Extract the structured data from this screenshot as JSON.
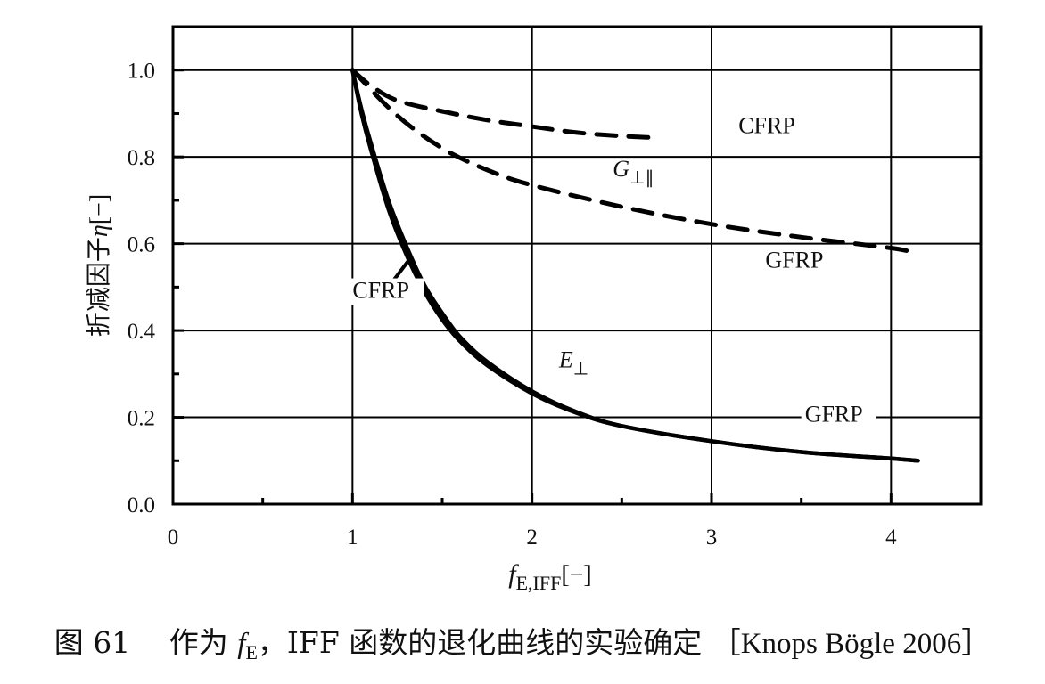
{
  "chart_data": {
    "type": "line",
    "xlim": [
      0,
      4.5
    ],
    "ylim": [
      0,
      1.1
    ],
    "xticks": [
      "0",
      "1",
      "2",
      "3",
      "4"
    ],
    "yticks": [
      "0.0",
      "0.2",
      "0.4",
      "0.6",
      "0.8",
      "1.0"
    ],
    "xlabel": {
      "var": "f",
      "sub": "E,IFF",
      "unit": "[−]"
    },
    "ylabel": {
      "text": "折减因子",
      "var": "η",
      "unit": "[−]"
    },
    "grid": true,
    "series": [
      {
        "name": "CFRP G⊥∥",
        "style": "dashed",
        "color": "#000000",
        "x": [
          1.0,
          1.1,
          1.25,
          1.5,
          1.75,
          2.0,
          2.25,
          2.5,
          2.65
        ],
        "y": [
          1.0,
          0.965,
          0.93,
          0.905,
          0.885,
          0.87,
          0.856,
          0.848,
          0.845
        ]
      },
      {
        "name": "GFRP G⊥∥",
        "style": "dashed",
        "color": "#000000",
        "x": [
          1.0,
          1.25,
          1.5,
          1.75,
          2.0,
          2.5,
          3.0,
          3.5,
          4.0,
          4.12
        ],
        "y": [
          1.0,
          0.895,
          0.82,
          0.77,
          0.735,
          0.685,
          0.645,
          0.615,
          0.59,
          0.58
        ]
      },
      {
        "name": "CFRP E⊥",
        "style": "solid",
        "color": "#000000",
        "x": [
          1.0,
          1.05,
          1.1,
          1.2,
          1.3,
          1.4,
          1.5,
          1.6,
          1.75,
          2.0,
          2.25,
          2.5,
          3.0,
          3.5,
          4.0,
          4.15
        ],
        "y": [
          1.0,
          0.9,
          0.82,
          0.68,
          0.575,
          0.49,
          0.425,
          0.375,
          0.32,
          0.255,
          0.21,
          0.18,
          0.145,
          0.12,
          0.105,
          0.1
        ]
      },
      {
        "name": "GFRP E⊥",
        "style": "solid",
        "color": "#000000",
        "x": [
          1.0,
          1.05,
          1.1,
          1.2,
          1.3,
          1.4,
          1.5,
          1.6,
          1.75,
          2.0,
          2.25,
          2.5,
          3.0,
          3.5,
          4.0,
          4.15
        ],
        "y": [
          1.0,
          0.91,
          0.835,
          0.7,
          0.595,
          0.505,
          0.44,
          0.385,
          0.328,
          0.26,
          0.212,
          0.18,
          0.145,
          0.12,
          0.105,
          0.1
        ]
      }
    ],
    "annotations": [
      {
        "text": "CFRP",
        "x": 3.15,
        "y": 0.855
      },
      {
        "text": "G",
        "sub": "⊥∥",
        "x": 2.45,
        "y": 0.755
      },
      {
        "text": "GFRP",
        "x": 3.3,
        "y": 0.545
      },
      {
        "text": "CFRP",
        "x": 1.0,
        "y": 0.475
      },
      {
        "text": "E",
        "sub": "⊥",
        "x": 2.15,
        "y": 0.315
      },
      {
        "text": "GFRP",
        "x": 3.52,
        "y": 0.19
      }
    ]
  },
  "caption": {
    "prefix": "图 61　 作为 ",
    "var": "f",
    "sub": "E",
    "middle": "，IFF 函数的退化曲线的实验确定 ［",
    "ref": "Knops Bögle 2006",
    "suffix": "］"
  }
}
